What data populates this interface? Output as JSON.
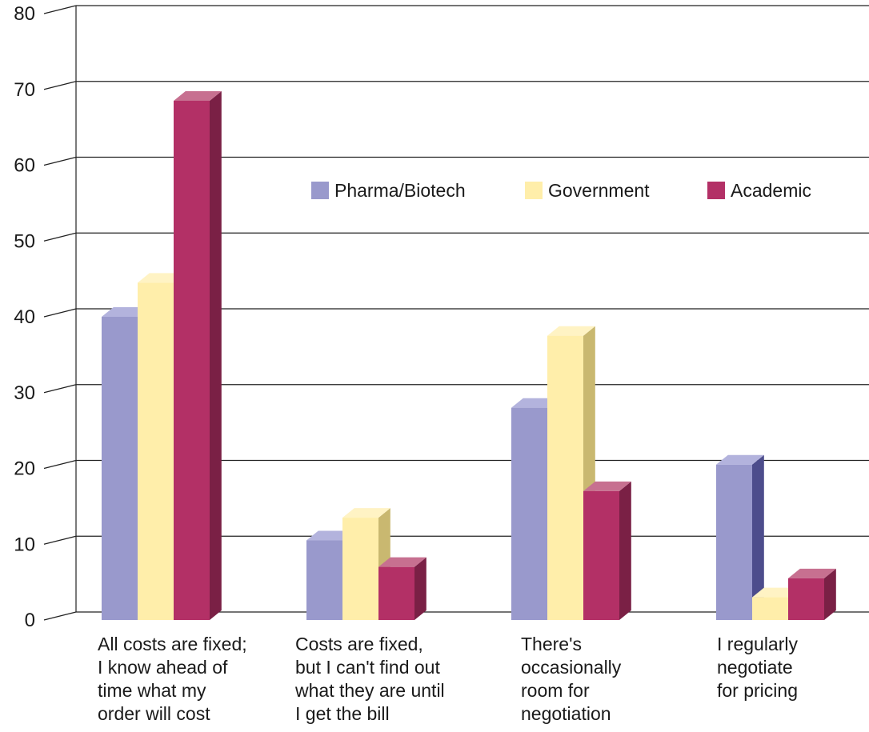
{
  "chart_data": {
    "type": "bar",
    "categories": [
      [
        "All costs are fixed;",
        "I know ahead of",
        "time what my",
        "order will cost"
      ],
      [
        "Costs are fixed,",
        "but I can't find out",
        "what they are until",
        "I get the bill"
      ],
      [
        "There's",
        "occasionally",
        "room for",
        "negotiation"
      ],
      [
        "I regularly",
        "negotiate",
        "for pricing"
      ]
    ],
    "series": [
      {
        "name": "Pharma/Biotech",
        "values": [
          40,
          10.5,
          28,
          20.5
        ],
        "color": "#9999cc",
        "side_color": "#4d4d8c",
        "top_color": "#b3b3dd"
      },
      {
        "name": "Government",
        "values": [
          44.5,
          13.5,
          37.5,
          3
        ],
        "color": "#ffeeaa",
        "side_color": "#c9b870",
        "top_color": "#fff3c4"
      },
      {
        "name": "Academic",
        "values": [
          68.5,
          7,
          17,
          5.5
        ],
        "color": "#b33066",
        "side_color": "#7a2045",
        "top_color": "#c77090"
      }
    ],
    "yticks": [
      "0",
      "10",
      "20",
      "30",
      "40",
      "50",
      "60",
      "70",
      "80"
    ],
    "ylim": [
      0,
      80
    ],
    "grid": true,
    "legend_position": "top-right",
    "title": "",
    "xlabel": "",
    "ylabel": ""
  }
}
